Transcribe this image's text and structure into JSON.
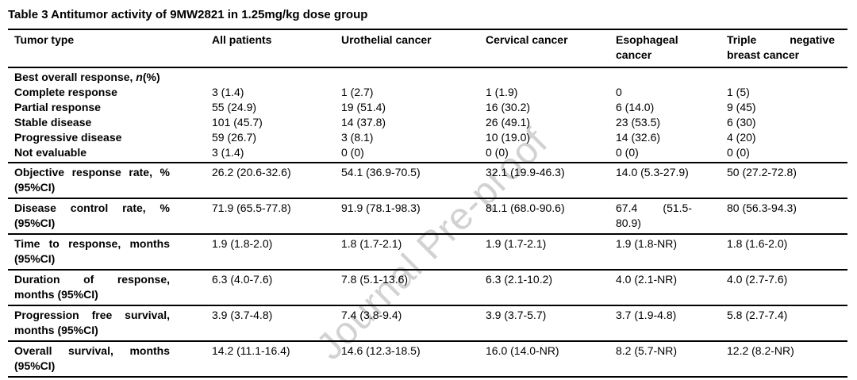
{
  "title": "Table 3 Antitumor activity of 9MW2821 in 1.25mg/kg dose group",
  "watermark": "Journal Pre-proof",
  "table": {
    "columns": [
      "Tumor type",
      "All patients",
      "Urothelial cancer",
      "Cervical cancer",
      "Esophageal cancer",
      "Triple negative breast cancer"
    ],
    "section_header": {
      "prefix": "Best overall response, ",
      "italic": "n",
      "suffix": "(%)"
    },
    "response_rows": [
      {
        "label": "Complete response",
        "values": [
          "3 (1.4)",
          "1 (2.7)",
          "1 (1.9)",
          "0",
          "1 (5)"
        ]
      },
      {
        "label": "Partial response",
        "values": [
          "55 (24.9)",
          "19 (51.4)",
          "16 (30.2)",
          "6 (14.0)",
          "9 (45)"
        ]
      },
      {
        "label": "Stable disease",
        "values": [
          "101 (45.7)",
          "14 (37.8)",
          "26 (49.1)",
          "23 (53.5)",
          "6 (30)"
        ]
      },
      {
        "label": "Progressive disease",
        "values": [
          "59 (26.7)",
          "3 (8.1)",
          "10 (19.0)",
          "14 (32.6)",
          "4 (20)"
        ]
      },
      {
        "label": "Not evaluable",
        "values": [
          "3 (1.4)",
          "0 (0)",
          "0 (0)",
          "0 (0)",
          "0 (0)"
        ]
      }
    ],
    "metric_rows": [
      {
        "label": "Objective response rate, % (95%CI)",
        "values": [
          "26.2 (20.6-32.6)",
          "54.1 (36.9-70.5)",
          "32.1 (19.9-46.3)",
          "14.0 (5.3-27.9)",
          "50 (27.2-72.8)"
        ]
      },
      {
        "label": "Disease control rate, % (95%CI)",
        "values": [
          "71.9 (65.5-77.8)",
          "91.9 (78.1-98.3)",
          "81.1 (68.0-90.6)",
          "67.4 (51.5-80.9)",
          "80 (56.3-94.3)"
        ]
      },
      {
        "label": "Time to response, months (95%CI)",
        "values": [
          "1.9 (1.8-2.0)",
          "1.8 (1.7-2.1)",
          "1.9 (1.7-2.1)",
          "1.9 (1.8-NR)",
          "1.8 (1.6-2.0)"
        ]
      },
      {
        "label": "Duration of response, months (95%CI)",
        "values": [
          "6.3 (4.0-7.6)",
          "7.8 (5.1-13.6)",
          "6.3 (2.1-10.2)",
          "4.0 (2.1-NR)",
          "4.0 (2.7-7.6)"
        ]
      },
      {
        "label": "Progression free survival, months (95%CI)",
        "values": [
          "3.9 (3.7-4.8)",
          "7.4 (3.8-9.4)",
          "3.9 (3.7-5.7)",
          "3.7 (1.9-4.8)",
          "5.8 (2.7-7.4)"
        ]
      },
      {
        "label": "Overall survival, months (95%CI)",
        "values": [
          "14.2 (11.1-16.4)",
          "14.6 (12.3-18.5)",
          "16.0 (14.0-NR)",
          "8.2 (5.7-NR)",
          "12.2 (8.2-NR)"
        ]
      }
    ]
  }
}
